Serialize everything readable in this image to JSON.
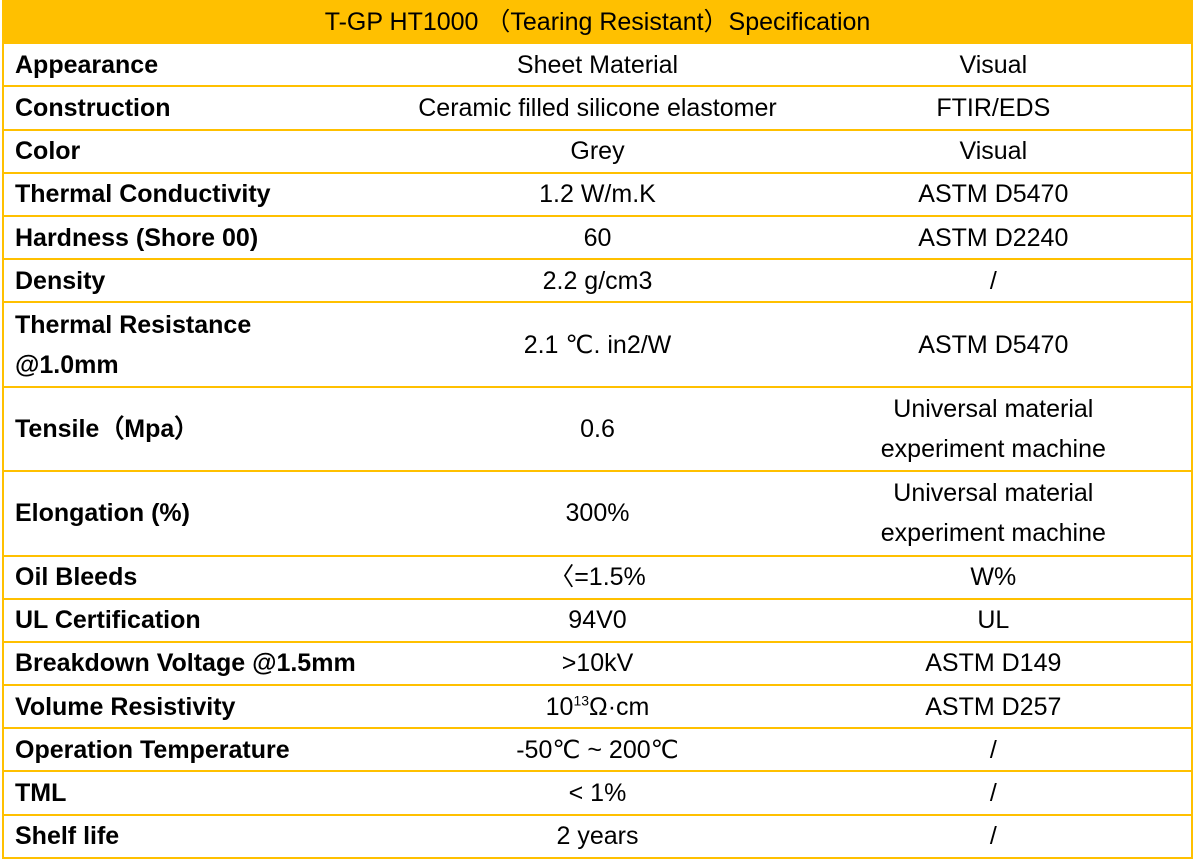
{
  "title": "T-GP HT1000 （Tearing Resistant）Specification",
  "rows": [
    {
      "property": "Appearance",
      "value": "Sheet Material",
      "method": "Visual"
    },
    {
      "property": "Construction",
      "value": "Ceramic filled silicone elastomer",
      "method": "FTIR/EDS"
    },
    {
      "property": "Color",
      "value": "Grey",
      "method": "Visual"
    },
    {
      "property": "Thermal Conductivity",
      "value": "1.2 W/m.K",
      "method": "ASTM D5470"
    },
    {
      "property": "Hardness (Shore 00)",
      "value": "60",
      "method": "ASTM D2240"
    },
    {
      "property": "Density",
      "value": "2.2 g/cm3",
      "method": "/"
    },
    {
      "property_line1": "Thermal Resistance",
      "property_line2": "@1.0mm",
      "value": "2.1 ℃. in2/W",
      "method": "ASTM D5470"
    },
    {
      "property": "Tensile（Mpa）",
      "value": "0.6",
      "method_line1": "Universal material",
      "method_line2": "experiment machine"
    },
    {
      "property": "Elongation (%)",
      "value": "300%",
      "method_line1": "Universal material",
      "method_line2": "experiment machine"
    },
    {
      "property": "Oil Bleeds",
      "value": "〈=1.5%",
      "method": "W%"
    },
    {
      "property": "UL Certification",
      "value": "94V0",
      "method": "UL"
    },
    {
      "property": "Breakdown Voltage @1.5mm",
      "value": ">10kV",
      "method": "ASTM D149"
    },
    {
      "property": "Volume Resistivity",
      "value_base": "10",
      "value_exp": "13",
      "value_unit": "Ω·cm",
      "method": "ASTM D257"
    },
    {
      "property": "Operation Temperature",
      "value": "-50℃ ~ 200℃",
      "method": "/"
    },
    {
      "property": "TML",
      "value": "< 1%",
      "method": "/"
    },
    {
      "property": "Shelf life",
      "value": "2 years",
      "method": "/"
    }
  ]
}
